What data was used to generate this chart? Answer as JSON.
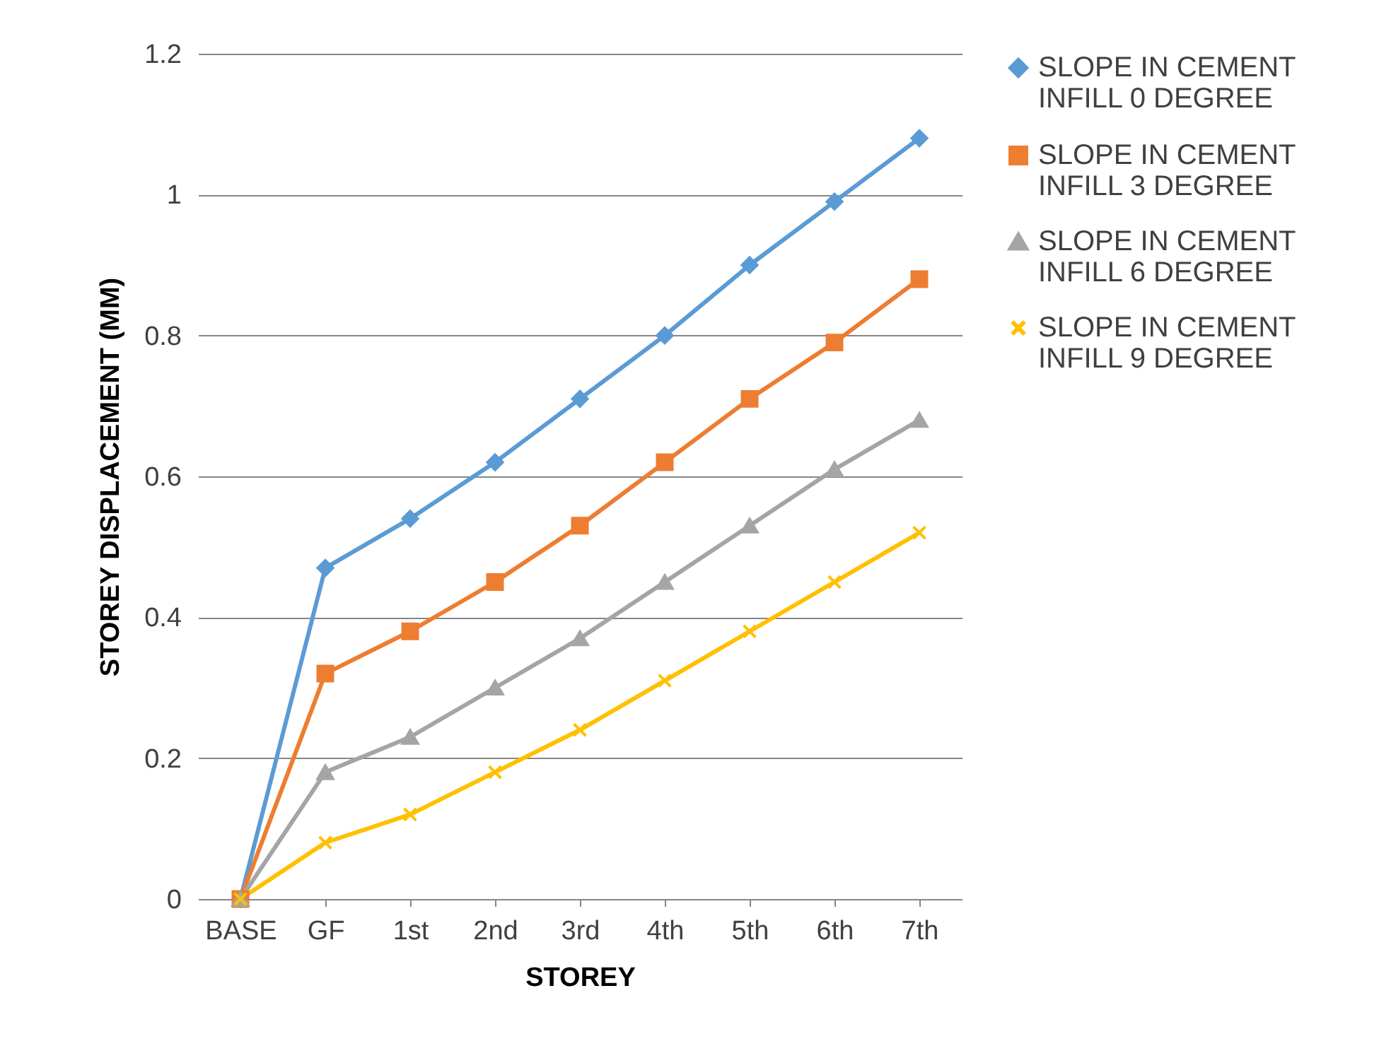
{
  "chart_data": {
    "type": "line",
    "xlabel": "STOREY",
    "ylabel": "STOREY DISPLACEMENT (MM)",
    "categories": [
      "BASE",
      "GF",
      "1st",
      "2nd",
      "3rd",
      "4th",
      "5th",
      "6th",
      "7th"
    ],
    "ylim": [
      0,
      1.2
    ],
    "yticks": [
      0,
      0.2,
      0.4,
      0.6,
      0.8,
      1,
      1.2
    ],
    "grid": "y",
    "legend": "right",
    "series": [
      {
        "name": "SLOPE IN CEMENT INFILL 0 DEGREE",
        "color": "#5b9bd5",
        "marker": "diamond",
        "values": [
          0,
          0.47,
          0.54,
          0.62,
          0.71,
          0.8,
          0.9,
          0.99,
          1.08
        ]
      },
      {
        "name": "SLOPE IN CEMENT INFILL 3 DEGREE",
        "color": "#ed7d31",
        "marker": "square",
        "values": [
          0,
          0.32,
          0.38,
          0.45,
          0.53,
          0.62,
          0.71,
          0.79,
          0.88
        ]
      },
      {
        "name": "SLOPE IN CEMENT INFILL 6 DEGREE",
        "color": "#a5a5a5",
        "marker": "triangle",
        "values": [
          0,
          0.18,
          0.23,
          0.3,
          0.37,
          0.45,
          0.53,
          0.61,
          0.68
        ]
      },
      {
        "name": "SLOPE IN CEMENT INFILL 9 DEGREE",
        "color": "#ffc000",
        "marker": "cross",
        "values": [
          0,
          0.08,
          0.12,
          0.18,
          0.24,
          0.31,
          0.38,
          0.45,
          0.52
        ]
      }
    ]
  }
}
